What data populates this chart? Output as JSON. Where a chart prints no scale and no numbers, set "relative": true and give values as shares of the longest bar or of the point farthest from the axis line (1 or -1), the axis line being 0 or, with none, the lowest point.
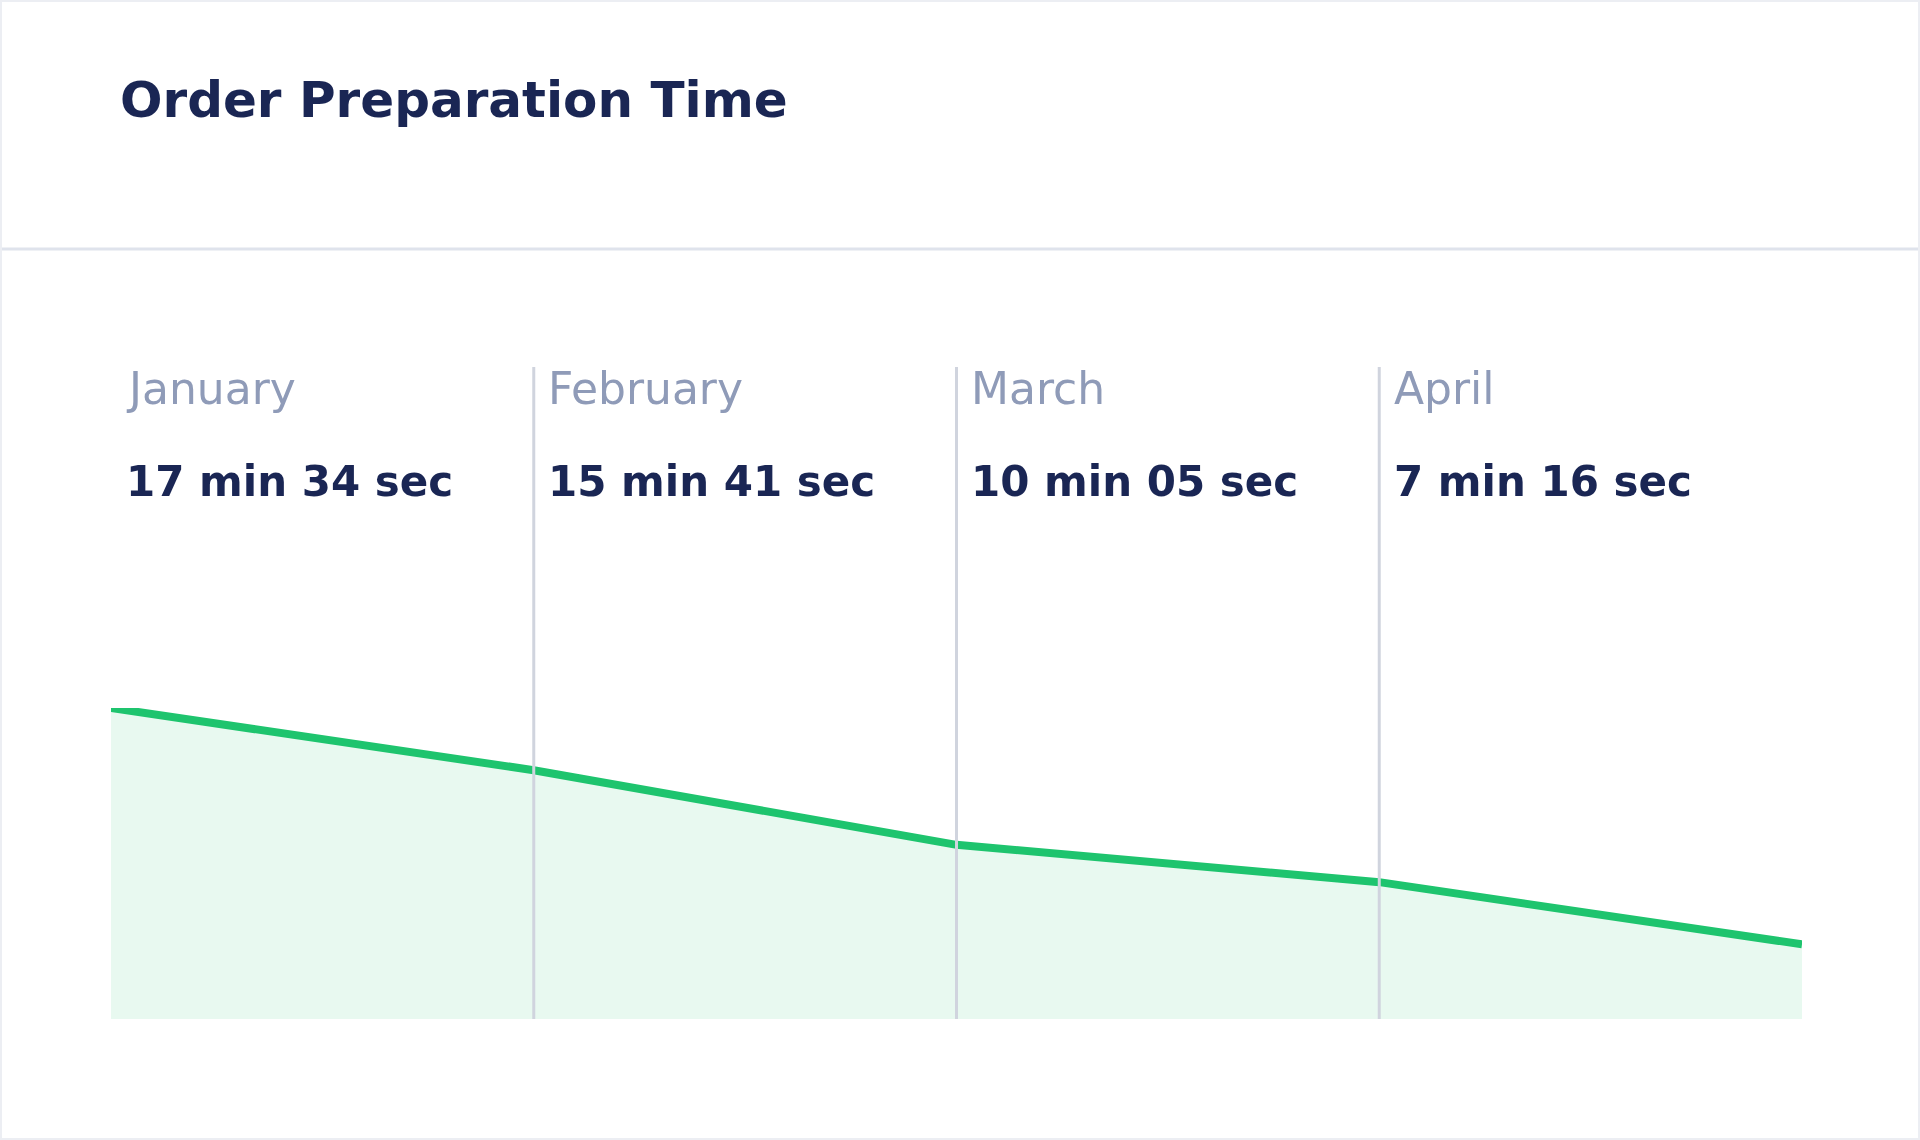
{
  "chart_data": {
    "type": "area",
    "title": "Order Preparation Time",
    "categories": [
      null,
      null,
      null,
      null,
      null
    ],
    "relative": true,
    "grid": "x",
    "legend": false,
    "series": [
      {
        "color": "#1ec46e",
        "values": [
          1,
          0.8,
          0.56,
          0.44,
          0.24
        ]
      }
    ],
    "annotations": [
      "January",
      "17 min 34 sec",
      "February",
      "15 min 41 sec",
      "March",
      "10 min 05 sec",
      "April",
      "7 min 16 sec"
    ]
  }
}
